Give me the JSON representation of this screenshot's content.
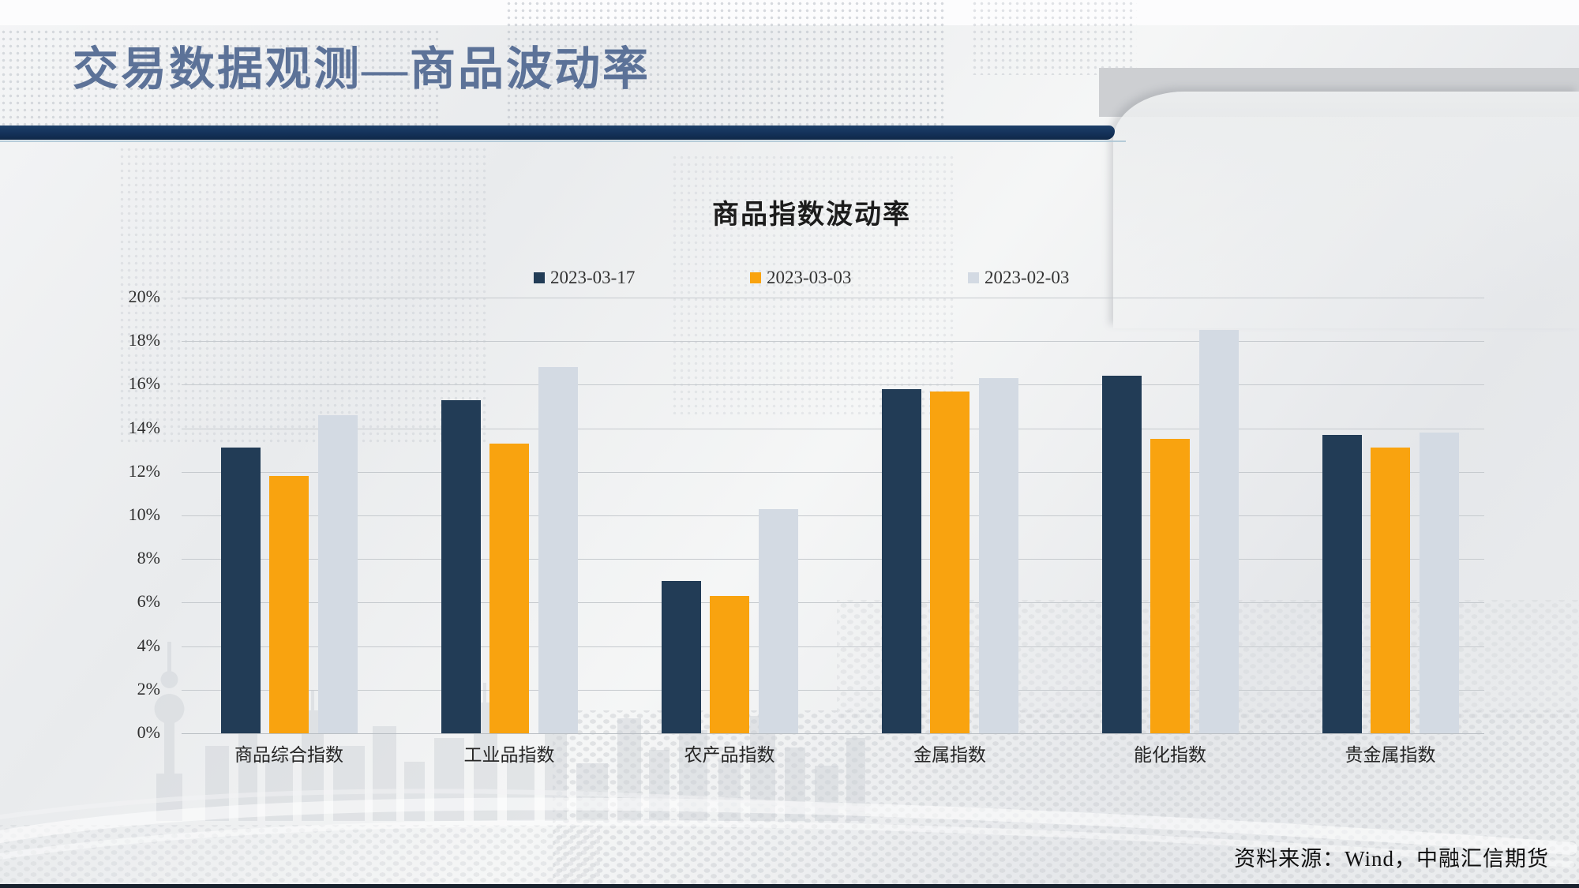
{
  "page": {
    "title": "交易数据观测—商品波动率",
    "source": "资料来源：Wind，中融汇信期货"
  },
  "colors": {
    "header_bar": "#14325a",
    "title_text": "#5c7298",
    "series_navy": "#223c56",
    "series_orange": "#f9a30f",
    "series_light": "#d3dae3",
    "gridline": "#c6cace"
  },
  "chart_data": {
    "type": "bar",
    "title": "商品指数波动率",
    "categories": [
      "商品综合指数",
      "工业品指数",
      "农产品指数",
      "金属指数",
      "能化指数",
      "贵金属指数"
    ],
    "series": [
      {
        "name": "2023-03-17",
        "color": "#223c56",
        "values": [
          13.1,
          15.3,
          7.0,
          15.8,
          16.4,
          13.7
        ]
      },
      {
        "name": "2023-03-03",
        "color": "#f9a30f",
        "values": [
          11.8,
          13.3,
          6.3,
          15.7,
          13.5,
          13.1
        ]
      },
      {
        "name": "2023-02-03",
        "color": "#d3dae3",
        "values": [
          14.6,
          16.8,
          10.3,
          16.3,
          18.5,
          13.8
        ]
      }
    ],
    "xlabel": "",
    "ylabel": "",
    "ylim": [
      0,
      20
    ],
    "y_axis_ticks": [
      "0%",
      "2%",
      "4%",
      "6%",
      "8%",
      "10%",
      "12%",
      "14%",
      "16%",
      "18%",
      "20%"
    ],
    "grid": true,
    "legend_position": "top"
  }
}
